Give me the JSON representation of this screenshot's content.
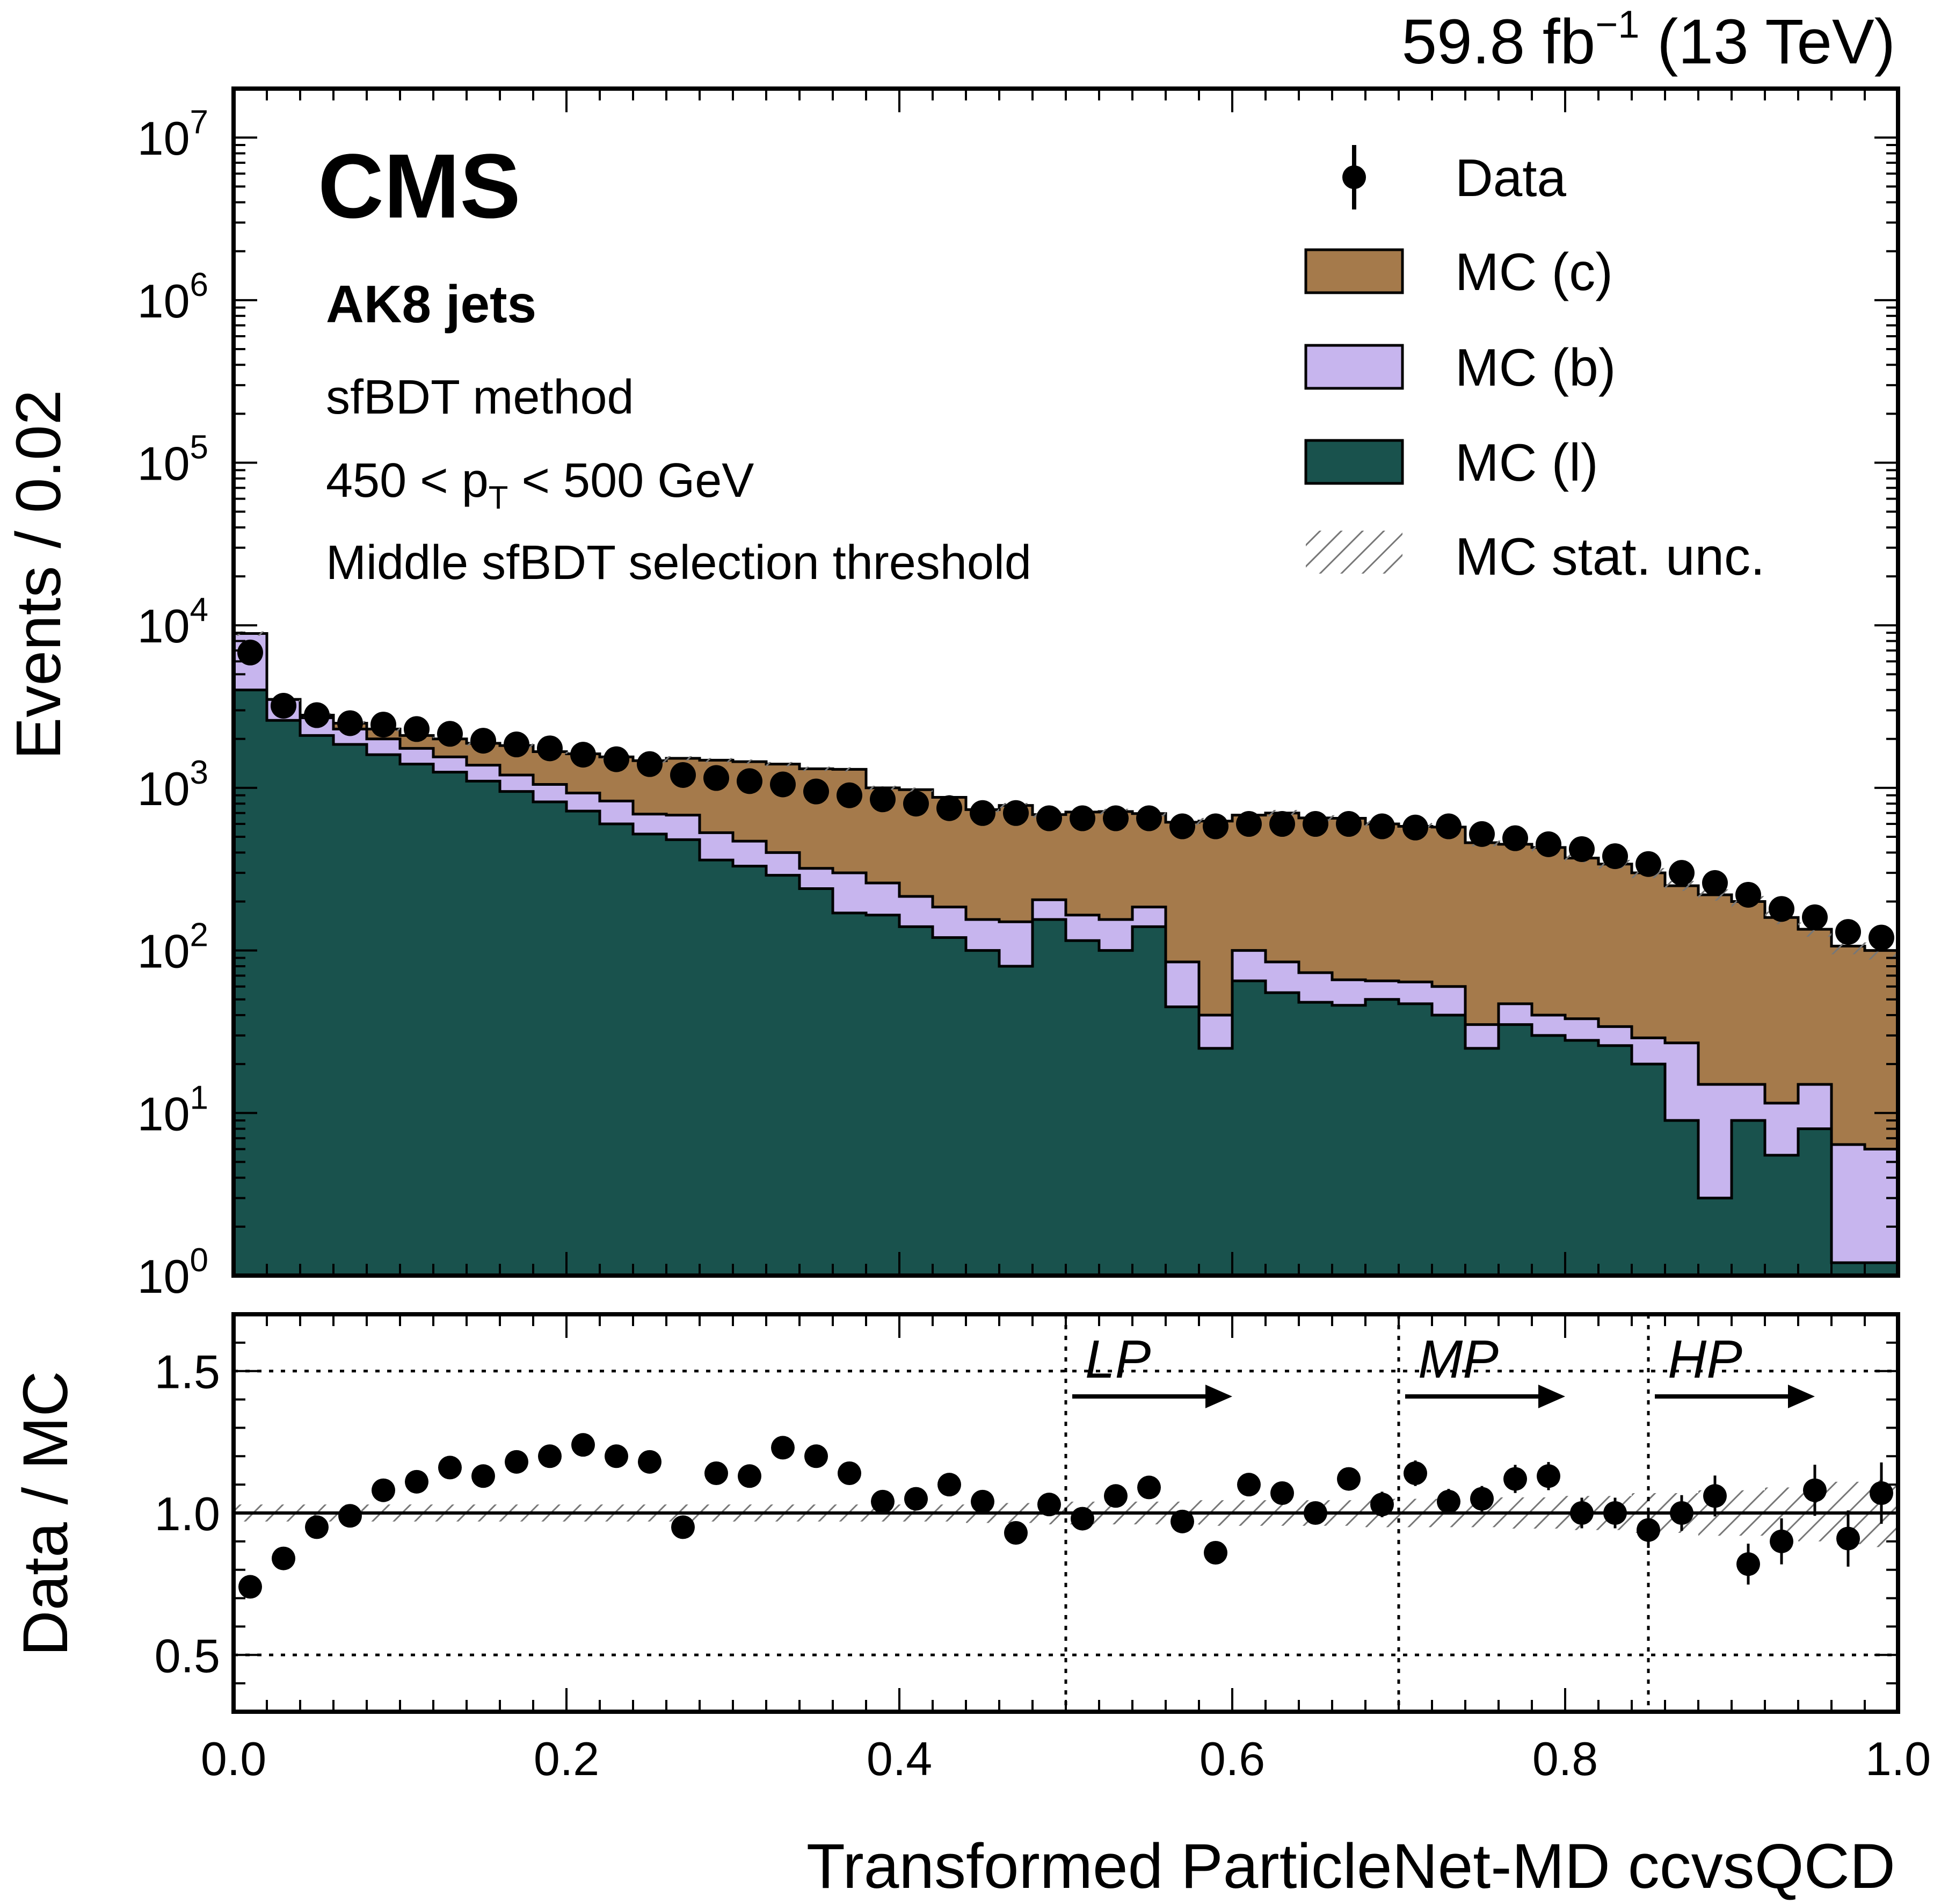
{
  "header": {
    "lumi_value": "59.8 fb",
    "lumi_exp": "−1",
    "energy": " (13 TeV)"
  },
  "labels": {
    "experiment": "CMS",
    "jets": "AK8 jets",
    "method": "sfBDT method",
    "pt_prefix": "450 < p",
    "pt_sub": "T",
    "pt_suffix": " < 500 GeV",
    "threshold": "Middle sfBDT selection threshold"
  },
  "legend": {
    "data": "Data",
    "c": "MC (c)",
    "b": "MC (b)",
    "l": "MC (l)",
    "stat": "MC stat. unc."
  },
  "colors": {
    "mc_c": "#a57a4b",
    "mc_b": "#c7b5ee",
    "mc_l": "#19524d",
    "data": "#000000",
    "hatch": "#777777"
  },
  "chart_data": [
    {
      "type": "bar",
      "stacked": true,
      "log_y": true,
      "ylabel": "Events / 0.02",
      "xlim": [
        0.0,
        1.0
      ],
      "ylim": [
        1,
        20000000
      ],
      "y_tick_labels": [
        {
          "base": "10",
          "exp": "0"
        },
        {
          "base": "10",
          "exp": "1"
        },
        {
          "base": "10",
          "exp": "2"
        },
        {
          "base": "10",
          "exp": "3"
        },
        {
          "base": "10",
          "exp": "4"
        },
        {
          "base": "10",
          "exp": "5"
        },
        {
          "base": "10",
          "exp": "6"
        },
        {
          "base": "10",
          "exp": "7"
        }
      ],
      "bin_width": 0.02,
      "x": [
        0.01,
        0.03,
        0.05,
        0.07,
        0.09,
        0.11,
        0.13,
        0.15,
        0.17,
        0.19,
        0.21,
        0.23,
        0.25,
        0.27,
        0.29,
        0.31,
        0.33,
        0.35,
        0.37,
        0.39,
        0.41,
        0.43,
        0.45,
        0.47,
        0.49,
        0.51,
        0.53,
        0.55,
        0.57,
        0.59,
        0.61,
        0.63,
        0.65,
        0.67,
        0.69,
        0.71,
        0.73,
        0.75,
        0.77,
        0.79,
        0.81,
        0.83,
        0.85,
        0.87,
        0.89,
        0.91,
        0.93,
        0.95,
        0.97,
        0.99
      ],
      "series": [
        {
          "name": "MC (l)",
          "values": [
            4000,
            2600,
            2100,
            1850,
            1600,
            1400,
            1250,
            1100,
            950,
            820,
            720,
            600,
            520,
            480,
            360,
            330,
            290,
            240,
            170,
            165,
            140,
            120,
            100,
            80,
            155,
            115,
            100,
            140,
            45,
            25,
            65,
            55,
            48,
            46,
            50,
            47,
            40,
            25,
            35,
            30,
            28,
            26,
            20,
            9,
            3,
            9,
            5.5,
            8,
            1.2,
            1.2
          ]
        },
        {
          "name": "MC (b)",
          "values": [
            4900,
            900,
            600,
            450,
            400,
            350,
            300,
            280,
            250,
            230,
            210,
            230,
            170,
            200,
            170,
            140,
            110,
            80,
            130,
            95,
            75,
            65,
            55,
            70,
            50,
            50,
            55,
            45,
            40,
            15,
            35,
            30,
            25,
            20,
            15,
            17,
            20,
            10,
            12,
            10,
            10,
            8,
            9,
            18,
            12,
            6,
            6,
            7,
            5.2,
            4.8
          ]
        },
        {
          "name": "MC (c)",
          "values": [
            0,
            0,
            100,
            200,
            300,
            350,
            450,
            500,
            620,
            620,
            690,
            720,
            780,
            840,
            950,
            980,
            1000,
            990,
            1000,
            740,
            760,
            690,
            580,
            630,
            480,
            545,
            560,
            510,
            530,
            585,
            580,
            615,
            580,
            584,
            535,
            516,
            514,
            425,
            403,
            390,
            332,
            306,
            271,
            223,
            205,
            185,
            148,
            120,
            100,
            94
          ]
        }
      ],
      "data": {
        "name": "Data",
        "values": [
          6800,
          3200,
          2800,
          2500,
          2450,
          2300,
          2150,
          1950,
          1850,
          1750,
          1600,
          1500,
          1400,
          1200,
          1150,
          1100,
          1050,
          950,
          900,
          850,
          800,
          750,
          700,
          700,
          650,
          650,
          650,
          650,
          580,
          580,
          600,
          600,
          600,
          600,
          580,
          570,
          580,
          520,
          490,
          450,
          420,
          380,
          340,
          300,
          260,
          220,
          180,
          160,
          130,
          120
        ]
      },
      "legend_position": "top-right"
    },
    {
      "type": "scatter",
      "ylabel": "Data / MC",
      "xlabel": "Transformed ParticleNet-MD ccvsQCD",
      "xlim": [
        0.0,
        1.0
      ],
      "ylim": [
        0.3,
        1.7
      ],
      "x_tick_labels": [
        "0.0",
        "0.2",
        "0.4",
        "0.6",
        "0.8",
        "1.0"
      ],
      "y_tick_labels": [
        "0.5",
        "1.0",
        "1.5"
      ],
      "x": [
        0.01,
        0.03,
        0.05,
        0.07,
        0.09,
        0.11,
        0.13,
        0.15,
        0.17,
        0.19,
        0.21,
        0.23,
        0.25,
        0.27,
        0.29,
        0.31,
        0.33,
        0.35,
        0.37,
        0.39,
        0.41,
        0.43,
        0.45,
        0.47,
        0.49,
        0.51,
        0.53,
        0.55,
        0.57,
        0.59,
        0.61,
        0.63,
        0.65,
        0.67,
        0.69,
        0.71,
        0.73,
        0.75,
        0.77,
        0.79,
        0.81,
        0.83,
        0.85,
        0.87,
        0.89,
        0.91,
        0.93,
        0.95,
        0.97,
        0.99
      ],
      "ratio": [
        0.74,
        0.84,
        0.95,
        0.99,
        1.08,
        1.11,
        1.16,
        1.13,
        1.18,
        1.2,
        1.24,
        1.2,
        1.18,
        0.95,
        1.14,
        1.13,
        1.23,
        1.2,
        1.14,
        1.04,
        1.05,
        1.1,
        1.04,
        0.93,
        1.03,
        0.98,
        1.06,
        1.09,
        0.97,
        0.86,
        1.1,
        1.07,
        1.0,
        1.12,
        1.03,
        1.14,
        1.04,
        1.05,
        1.12,
        1.13,
        1.0,
        1.0,
        0.94,
        1.0,
        1.06,
        0.82,
        0.9,
        1.08,
        0.91,
        1.07
      ],
      "stat_unc": [
        0.03,
        0.03,
        0.03,
        0.03,
        0.03,
        0.03,
        0.03,
        0.03,
        0.03,
        0.03,
        0.03,
        0.03,
        0.03,
        0.03,
        0.03,
        0.03,
        0.03,
        0.03,
        0.03,
        0.03,
        0.03,
        0.03,
        0.035,
        0.035,
        0.04,
        0.04,
        0.04,
        0.04,
        0.04,
        0.045,
        0.045,
        0.045,
        0.045,
        0.045,
        0.05,
        0.05,
        0.05,
        0.05,
        0.055,
        0.055,
        0.06,
        0.06,
        0.07,
        0.07,
        0.08,
        0.08,
        0.09,
        0.1,
        0.11,
        0.12
      ],
      "reference_lines": [
        0.5,
        1.5
      ],
      "regions": [
        {
          "label": "LP",
          "x": 0.5,
          "arrow_to": 0.6
        },
        {
          "label": "MP",
          "x": 0.7,
          "arrow_to": 0.8
        },
        {
          "label": "HP",
          "x": 0.85,
          "arrow_to": 0.95
        }
      ]
    }
  ]
}
